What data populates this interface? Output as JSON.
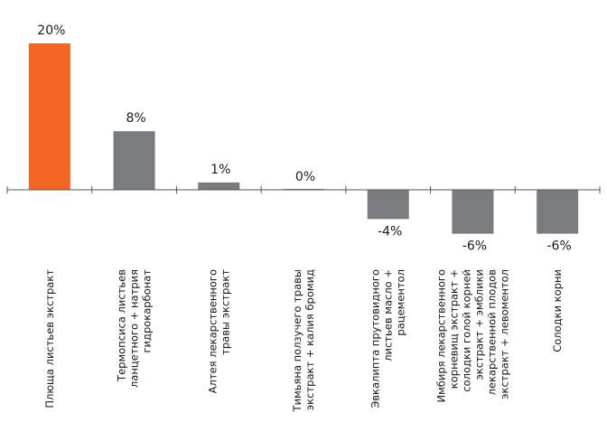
{
  "chart_data": {
    "type": "bar",
    "title": "",
    "xlabel": "",
    "ylabel": "",
    "ylim": [
      -8,
      22
    ],
    "grid": false,
    "categories": [
      [
        "Плюща листьев экстракт"
      ],
      [
        "Термопсиса листьев",
        "ланцетного + натрия",
        "гидрокарбонат"
      ],
      [
        "Алтея лекарственного",
        "травы экстракт"
      ],
      [
        "Тимьяна ползучего травы",
        "экстракт + калия бромид"
      ],
      [
        "Эвкалипта прутовидного",
        "листьев масло +",
        "рацементол"
      ],
      [
        "Имбиря лекарственного",
        "корневищ экстракт +",
        "солодки голой корней",
        "экстракт + эмблики",
        "лекарственной плодов",
        "экстракт + левоментол"
      ],
      [
        "Солодки корни"
      ]
    ],
    "values": [
      20,
      8,
      1,
      0,
      -4,
      -6,
      -6
    ],
    "value_labels": [
      "20%",
      "8%",
      "1%",
      "0%",
      "-4%",
      "-6%",
      "-6%"
    ],
    "colors": [
      "#f26522",
      "#7a7b7e",
      "#7a7b7e",
      "#7a7b7e",
      "#7a7b7e",
      "#7a7b7e",
      "#7a7b7e"
    ],
    "axis_color": "#555555"
  }
}
